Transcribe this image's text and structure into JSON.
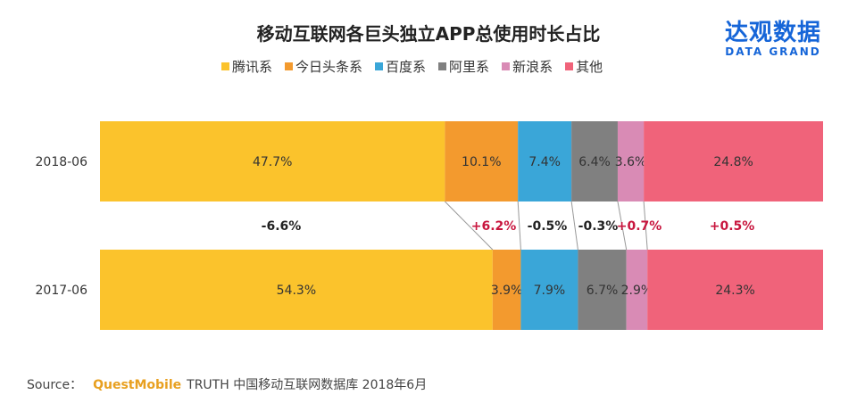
{
  "logo": {
    "cn": "达观数据",
    "en": "DATA GRAND"
  },
  "source": {
    "label": "Source：",
    "brand": "QuestMobile",
    "text": "TRUTH 中国移动互联网数据库 2018年6月"
  },
  "chart_data": {
    "type": "bar",
    "orientation": "horizontal-stacked-100",
    "title": "移动互联网各巨头独立APP总使用时长占比",
    "legend_position": "top",
    "categories": [
      "2018-06",
      "2017-06"
    ],
    "series": [
      {
        "name": "腾讯系",
        "color": "#fbc32c",
        "values": [
          47.7,
          54.3
        ],
        "labels": [
          "47.7%",
          "54.3%"
        ]
      },
      {
        "name": "今日头条系",
        "color": "#f39a2e",
        "values": [
          10.1,
          3.9
        ],
        "labels": [
          "10.1%",
          "3.9%"
        ]
      },
      {
        "name": "百度系",
        "color": "#3aa6d8",
        "values": [
          7.4,
          7.9
        ],
        "labels": [
          "7.4%",
          "7.9%"
        ]
      },
      {
        "name": "阿里系",
        "color": "#808080",
        "values": [
          6.4,
          6.7
        ],
        "labels": [
          "6.4%",
          "6.7%"
        ]
      },
      {
        "name": "新浪系",
        "color": "#d98bb5",
        "values": [
          3.6,
          2.9
        ],
        "labels": [
          "3.6%",
          "2.9%"
        ]
      },
      {
        "name": "其他",
        "color": "#f0637a",
        "values": [
          24.8,
          24.3
        ],
        "labels": [
          "24.8%",
          "24.3%"
        ]
      }
    ],
    "changes": [
      "-6.6%",
      "+6.2%",
      "-0.5%",
      "-0.3%",
      "+0.7%",
      "+0.5%"
    ],
    "change_colors": {
      "positive": "#c8163e",
      "negative": "#222222"
    }
  }
}
